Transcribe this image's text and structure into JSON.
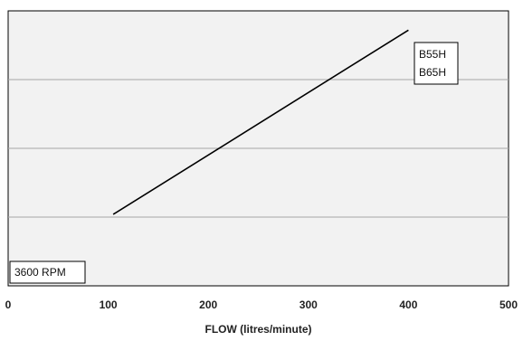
{
  "chart_data": {
    "type": "line",
    "title": "",
    "xlabel": "FLOW (litres/minute)",
    "ylabel": "",
    "xlim": [
      0,
      500
    ],
    "ylim": [
      0,
      4
    ],
    "x_ticks": [
      "0",
      "100",
      "200",
      "300",
      "400",
      "500"
    ],
    "gridlines_y": [
      1,
      2,
      3
    ],
    "grid": true,
    "series": [
      {
        "x": [
          105,
          400
        ],
        "y": [
          1.04,
          3.72
        ]
      }
    ],
    "legend": {
      "entries": [
        "B55H",
        "B65H"
      ],
      "placement": "top-right"
    },
    "annotation": "3600 RPM",
    "colors": {
      "plot_background": "#f2f2f2",
      "gridline": "#a6a6a6",
      "line": "#000000",
      "frame": "#000000"
    }
  }
}
